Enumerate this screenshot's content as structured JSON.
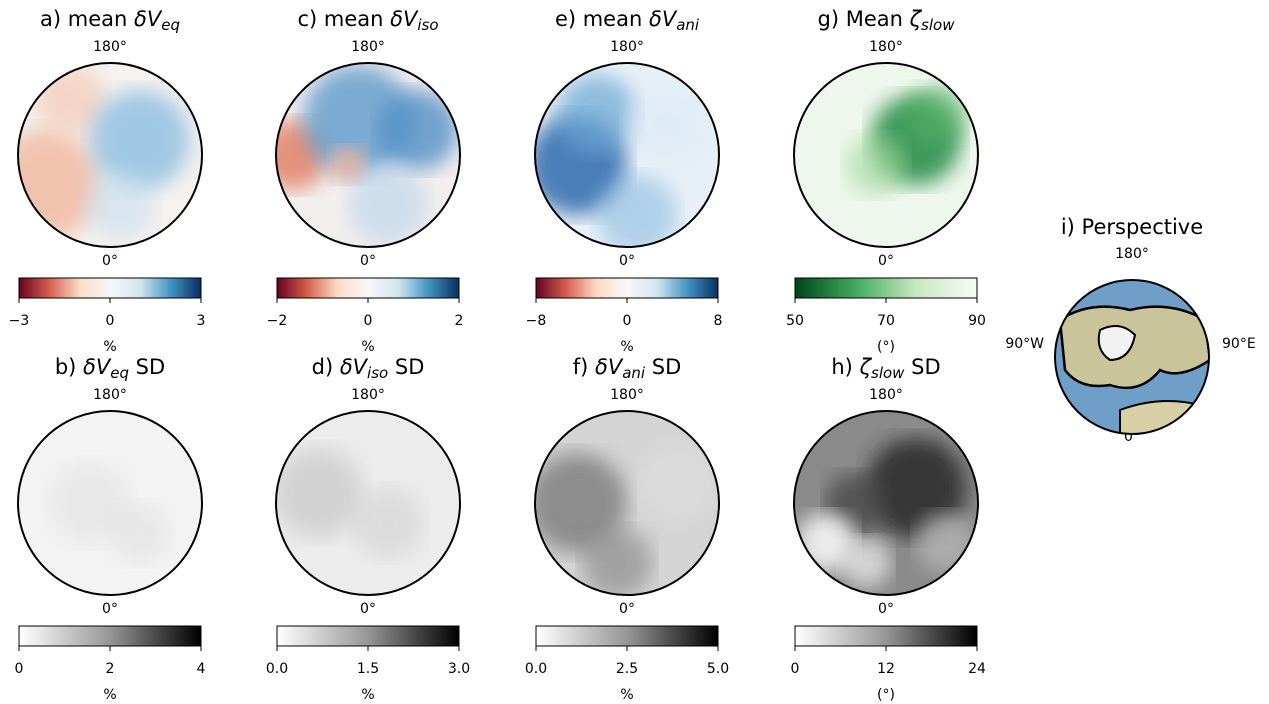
{
  "panels": [
    {
      "title": {
        "prefix": "a) mean ",
        "symbol": "δV",
        "sub": "eq"
      },
      "top": "180°",
      "bottom": "0°",
      "colorbar": {
        "colors": [
          "#67001f",
          "#d6604d",
          "#fddbc7",
          "#f7f7f7",
          "#d1e5f0",
          "#4393c3",
          "#053061"
        ],
        "lim": [
          -3,
          3
        ],
        "ticks": [
          {
            "value": -3,
            "label": "−3"
          },
          0,
          3
        ],
        "unit": "%"
      }
    },
    {
      "title": {
        "prefix": "c) mean ",
        "symbol": "δV",
        "sub": "iso"
      },
      "top": "180°",
      "bottom": "0°",
      "colorbar": {
        "colors": [
          "#67001f",
          "#d6604d",
          "#fddbc7",
          "#f7f7f7",
          "#d1e5f0",
          "#4393c3",
          "#053061"
        ],
        "lim": [
          -2,
          2
        ],
        "ticks": [
          {
            "value": -2,
            "label": "−2"
          },
          0,
          2
        ],
        "unit": "%"
      }
    },
    {
      "title": {
        "prefix": "e) mean ",
        "symbol": "δV",
        "sub": "ani"
      },
      "top": "180°",
      "bottom": "0°",
      "colorbar": {
        "colors": [
          "#67001f",
          "#d6604d",
          "#fddbc7",
          "#f7f7f7",
          "#d1e5f0",
          "#4393c3",
          "#053061"
        ],
        "lim": [
          -8,
          8
        ],
        "ticks": [
          {
            "value": -8,
            "label": "−8"
          },
          0,
          8
        ],
        "unit": "%"
      }
    },
    {
      "title": {
        "prefix": "g) Mean ",
        "symbol": "ζ",
        "sub": "slow"
      },
      "top": "180°",
      "bottom": "0°",
      "colorbar": {
        "colors": [
          "#00441b",
          "#41ab5d",
          "#c7e9c0",
          "#f7fcf5"
        ],
        "lim": [
          50,
          90
        ],
        "ticks": [
          50,
          70,
          90
        ],
        "unit": "(°)"
      }
    },
    {
      "title": {
        "prefix": "b) ",
        "symbol": "δV",
        "sub": "eq",
        "suffix": " SD"
      },
      "top": "180°",
      "bottom": "0°",
      "colorbar": {
        "colors": [
          "#ffffff",
          "#969696",
          "#000000"
        ],
        "lim": [
          0,
          4
        ],
        "ticks": [
          0,
          2,
          4
        ],
        "unit": "%"
      }
    },
    {
      "title": {
        "prefix": "d) ",
        "symbol": "δV",
        "sub": "iso",
        "suffix": " SD"
      },
      "top": "180°",
      "bottom": "0°",
      "colorbar": {
        "colors": [
          "#ffffff",
          "#969696",
          "#000000"
        ],
        "lim": [
          0,
          3
        ],
        "ticks": [
          {
            "value": 0,
            "label": "0.0"
          },
          1.5,
          {
            "value": 3,
            "label": "3.0"
          }
        ],
        "unit": "%"
      }
    },
    {
      "title": {
        "prefix": "f) ",
        "symbol": "δV",
        "sub": "ani",
        "suffix": " SD"
      },
      "top": "180°",
      "bottom": "0°",
      "colorbar": {
        "colors": [
          "#ffffff",
          "#969696",
          "#000000"
        ],
        "lim": [
          0,
          5
        ],
        "ticks": [
          {
            "value": 0,
            "label": "0.0"
          },
          2.5,
          {
            "value": 5,
            "label": "5.0"
          }
        ],
        "unit": "%"
      }
    },
    {
      "title": {
        "prefix": "h) ",
        "symbol": "ζ",
        "sub": "slow",
        "suffix": " SD"
      },
      "top": "180°",
      "bottom": "0°",
      "colorbar": {
        "colors": [
          "#ffffff",
          "#969696",
          "#000000"
        ],
        "lim": [
          0,
          24
        ],
        "ticks": [
          0,
          12,
          24
        ],
        "unit": "(°)"
      }
    }
  ],
  "perspective": {
    "title": "i) Perspective",
    "top": "180°",
    "bottom": "0°",
    "left": "90°W",
    "right": "90°E"
  }
}
